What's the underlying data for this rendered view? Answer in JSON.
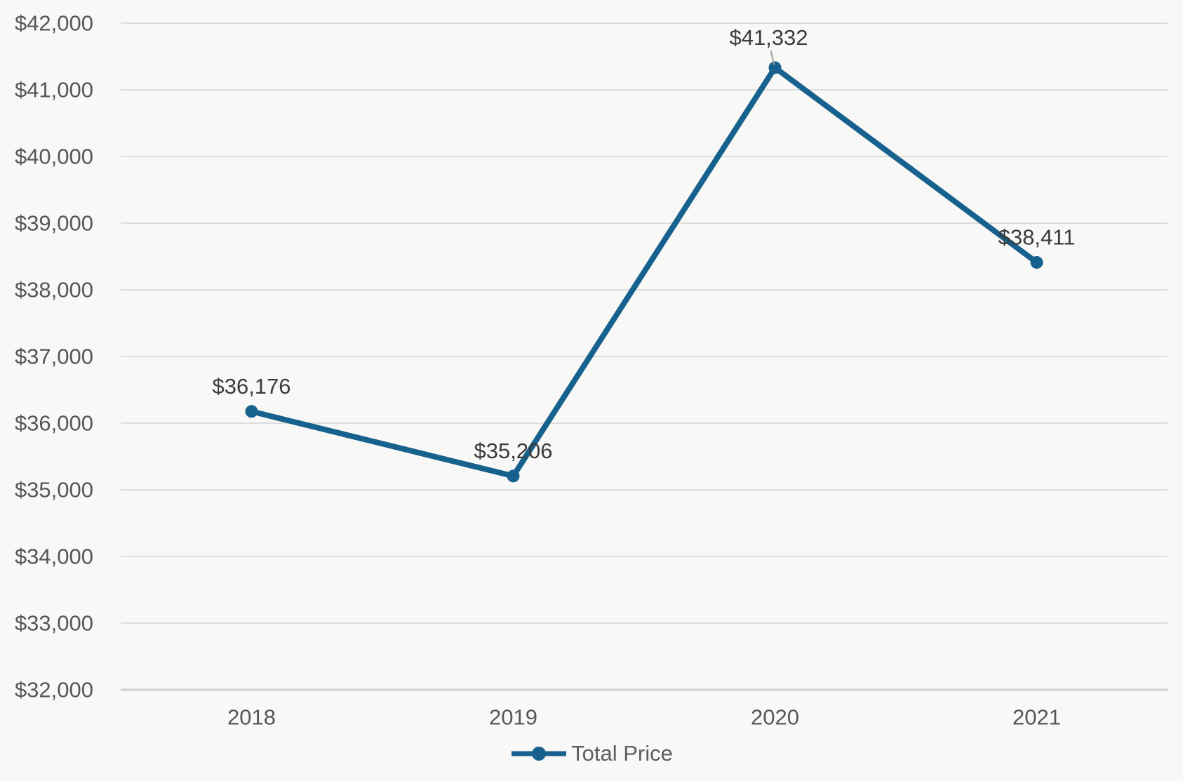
{
  "chart_data": {
    "type": "line",
    "title": "",
    "categories": [
      "2018",
      "2019",
      "2020",
      "2021"
    ],
    "series": [
      {
        "name": "Total Price",
        "values": [
          36176,
          35206,
          41332,
          38411
        ]
      }
    ],
    "data_labels": [
      "$36,176",
      "$35,206",
      "$41,332",
      "$38,411"
    ],
    "xlabel": "",
    "ylabel": "",
    "ylim": [
      32000,
      42000
    ],
    "y_tick_step": 1000,
    "y_tick_labels": [
      "$32,000",
      "$33,000",
      "$34,000",
      "$35,000",
      "$36,000",
      "$37,000",
      "$38,000",
      "$39,000",
      "$40,000",
      "$41,000",
      "$42,000"
    ],
    "grid": "horizontal",
    "legend": {
      "position": "bottom-center",
      "entries": [
        "Total Price"
      ]
    },
    "colors": {
      "series_line": "#16618e",
      "marker_fill": "#16618e",
      "gridline": "#dcdcdc",
      "baseline": "#cfcfcf",
      "axis_text": "#565656",
      "data_label_text": "#3b3b3b",
      "legend_text": "#5e5e5e",
      "leader_line": "#9e9e9e",
      "background": "#f8f8f6"
    }
  }
}
